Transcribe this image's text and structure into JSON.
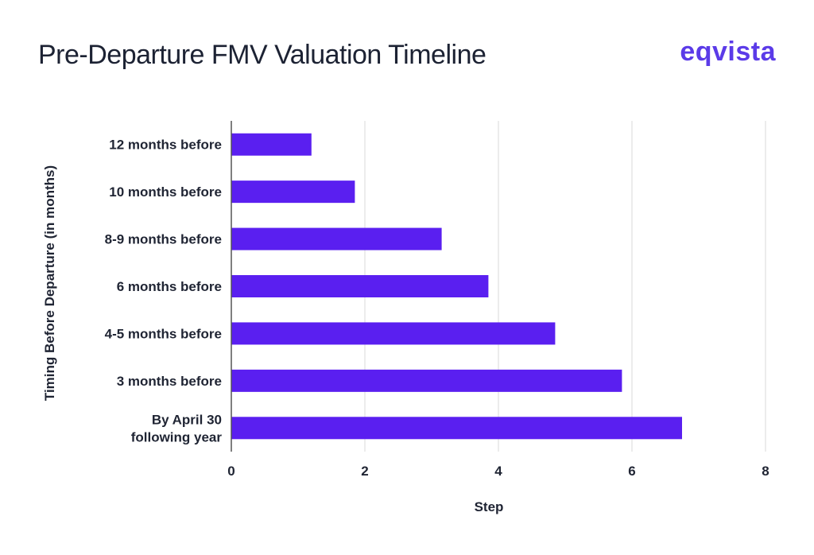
{
  "header": {
    "title": "Pre-Departure FMV Valuation Timeline",
    "brand": "eqvista"
  },
  "colors": {
    "bar": "#5a1ff0",
    "grid": "#d9d9d9",
    "axis": "#555555",
    "brand_purple": "#5b3be8",
    "brand_blue": "#3f7bff"
  },
  "chart_data": {
    "type": "bar",
    "orientation": "horizontal",
    "title": "Pre-Departure FMV Valuation Timeline",
    "xlabel": "Step",
    "ylabel": "Timing Before Departure (in months)",
    "xlim": [
      0,
      8
    ],
    "xticks": [
      0,
      2,
      4,
      6,
      8
    ],
    "grid": true,
    "categories": [
      "12 months before",
      "10 months before",
      "8-9 months before",
      "6 months before",
      "4-5 months before",
      "3 months before",
      "By April 30 following year"
    ],
    "values": [
      1.2,
      1.85,
      3.15,
      3.85,
      4.85,
      5.85,
      6.75
    ]
  }
}
